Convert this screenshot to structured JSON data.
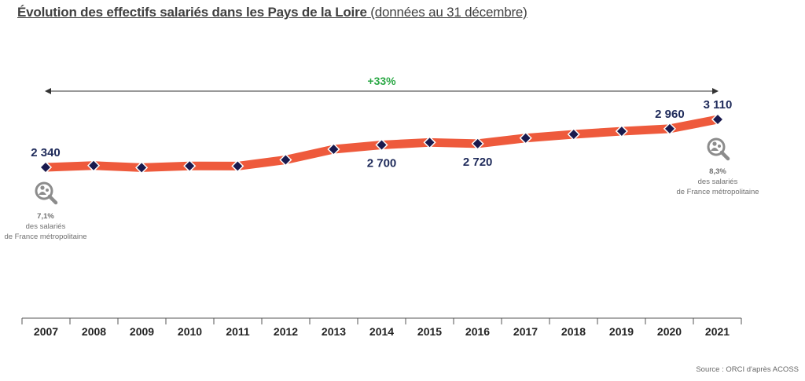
{
  "title": {
    "main": "Évolution des effectifs salariés dans les Pays de la Loire",
    "sub": "(données au 31 décembre)"
  },
  "source": "Source : ORCI d'après ACOSS",
  "colors": {
    "line": "#ee5a3c",
    "marker": "#1a1a4e",
    "growth": "#2aa845",
    "label": "#1e2a5a",
    "annotation": "#707070"
  },
  "chart_data": {
    "type": "line",
    "categories": [
      "2007",
      "2008",
      "2009",
      "2010",
      "2011",
      "2012",
      "2013",
      "2014",
      "2015",
      "2016",
      "2017",
      "2018",
      "2019",
      "2020",
      "2021"
    ],
    "values": [
      2340,
      2368,
      2335,
      2362,
      2360,
      2460,
      2630,
      2700,
      2740,
      2720,
      2810,
      2870,
      2920,
      2960,
      3110
    ],
    "data_labels": [
      {
        "index": 0,
        "text": "2 340"
      },
      {
        "index": 7,
        "text": "2 700"
      },
      {
        "index": 9,
        "text": "2 720"
      },
      {
        "index": 13,
        "text": "2 960"
      },
      {
        "index": 14,
        "text": "3 110"
      }
    ],
    "growth_label": "+33%",
    "annotations": [
      {
        "index": 0,
        "icon": "magnifier-people-icon",
        "value": "7,1%",
        "line1": "des salariés",
        "line2": "de France métropolitaine"
      },
      {
        "index": 14,
        "icon": "magnifier-people-icon",
        "value": "8,3%",
        "line1": "des salariés",
        "line2": "de France métropolitaine"
      }
    ],
    "grid": false
  }
}
